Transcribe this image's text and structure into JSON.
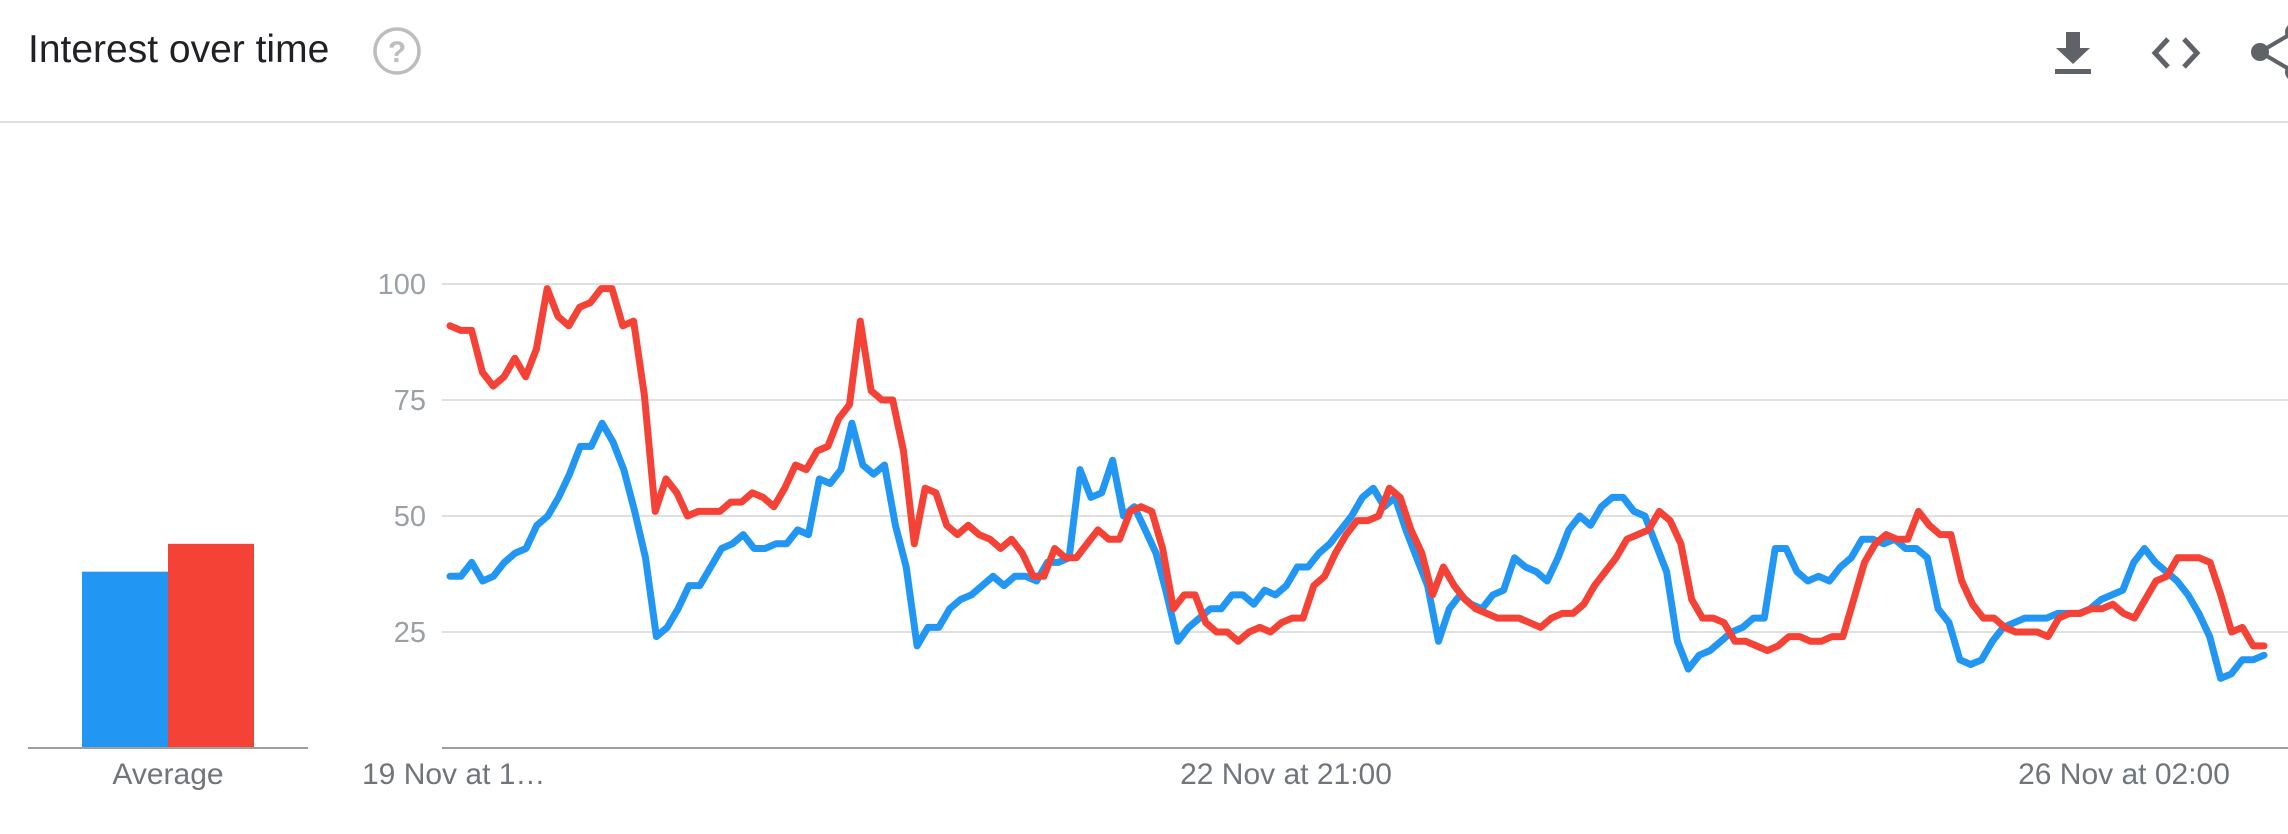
{
  "header": {
    "title": "Interest over time",
    "icons": [
      "help-icon",
      "download-icon",
      "embed-icon",
      "share-icon"
    ]
  },
  "colors": {
    "series_a": "#2196f3",
    "series_b": "#f44336",
    "grid": "#e0e0e0",
    "axis": "#9e9e9e"
  },
  "chart_data": [
    {
      "type": "bar",
      "categories": [
        "Average"
      ],
      "series": [
        {
          "values": [
            38
          ]
        },
        {
          "values": [
            44
          ]
        }
      ],
      "ylim": [
        0,
        100
      ]
    },
    {
      "type": "line",
      "x_tick_labels": [
        "19 Nov at 1…",
        "22 Nov at 21:00",
        "26 Nov at 02:00"
      ],
      "y_ticks": [
        25,
        50,
        75,
        100
      ],
      "ylim": [
        0,
        100
      ],
      "grid": true,
      "series": [
        {
          "color": "#2196f3",
          "values": [
            37,
            37,
            40,
            36,
            37,
            40,
            42,
            43,
            48,
            50,
            54,
            59,
            65,
            65,
            70,
            66,
            60,
            51,
            41,
            24,
            26,
            30,
            35,
            35,
            39,
            43,
            44,
            46,
            43,
            43,
            44,
            44,
            47,
            46,
            58,
            57,
            60,
            70,
            61,
            59,
            61,
            48,
            39,
            22,
            26,
            26,
            30,
            32,
            33,
            35,
            37,
            35,
            37,
            37,
            36,
            40,
            40,
            41,
            60,
            54,
            55,
            62,
            50,
            52,
            47,
            42,
            33,
            23,
            26,
            28,
            30,
            30,
            33,
            33,
            31,
            34,
            33,
            35,
            39,
            39,
            42,
            44,
            47,
            50,
            54,
            56,
            52,
            54,
            47,
            41,
            35,
            23,
            30,
            33,
            31,
            30,
            33,
            34,
            41,
            39,
            38,
            36,
            41,
            47,
            50,
            48,
            52,
            54,
            54,
            51,
            50,
            44,
            38,
            23,
            17,
            20,
            21,
            23,
            25,
            26,
            28,
            28,
            43,
            43,
            38,
            36,
            37,
            36,
            39,
            41,
            45,
            45,
            44,
            45,
            43,
            43,
            41,
            30,
            27,
            19,
            18,
            19,
            23,
            26,
            27,
            28,
            28,
            28,
            29,
            29,
            29,
            30,
            32,
            33,
            34,
            40,
            43,
            40,
            38,
            36,
            33,
            29,
            24,
            15,
            16,
            19,
            19,
            20
          ]
        },
        {
          "color": "#f44336",
          "values": [
            91,
            90,
            90,
            81,
            78,
            80,
            84,
            80,
            86,
            99,
            93,
            91,
            95,
            96,
            99,
            99,
            91,
            92,
            76,
            51,
            58,
            55,
            50,
            51,
            51,
            51,
            53,
            53,
            55,
            54,
            52,
            56,
            61,
            60,
            64,
            65,
            71,
            74,
            92,
            77,
            75,
            75,
            64,
            44,
            56,
            55,
            48,
            46,
            48,
            46,
            45,
            43,
            45,
            42,
            37,
            37,
            43,
            41,
            41,
            44,
            47,
            45,
            45,
            51,
            52,
            51,
            43,
            30,
            33,
            33,
            27,
            25,
            25,
            23,
            25,
            26,
            25,
            27,
            28,
            28,
            35,
            37,
            42,
            46,
            49,
            49,
            50,
            56,
            54,
            47,
            42,
            33,
            39,
            35,
            32,
            30,
            29,
            28,
            28,
            28,
            27,
            26,
            28,
            29,
            29,
            31,
            35,
            38,
            41,
            45,
            46,
            47,
            51,
            49,
            44,
            32,
            28,
            28,
            27,
            23,
            23,
            22,
            21,
            22,
            24,
            24,
            23,
            23,
            24,
            24,
            32,
            40,
            44,
            46,
            45,
            45,
            51,
            48,
            46,
            46,
            36,
            31,
            28,
            28,
            26,
            25,
            25,
            25,
            24,
            28,
            29,
            29,
            30,
            30,
            31,
            29,
            28,
            32,
            36,
            37,
            41,
            41,
            41,
            40,
            33,
            25,
            26,
            22,
            22
          ]
        }
      ]
    }
  ]
}
